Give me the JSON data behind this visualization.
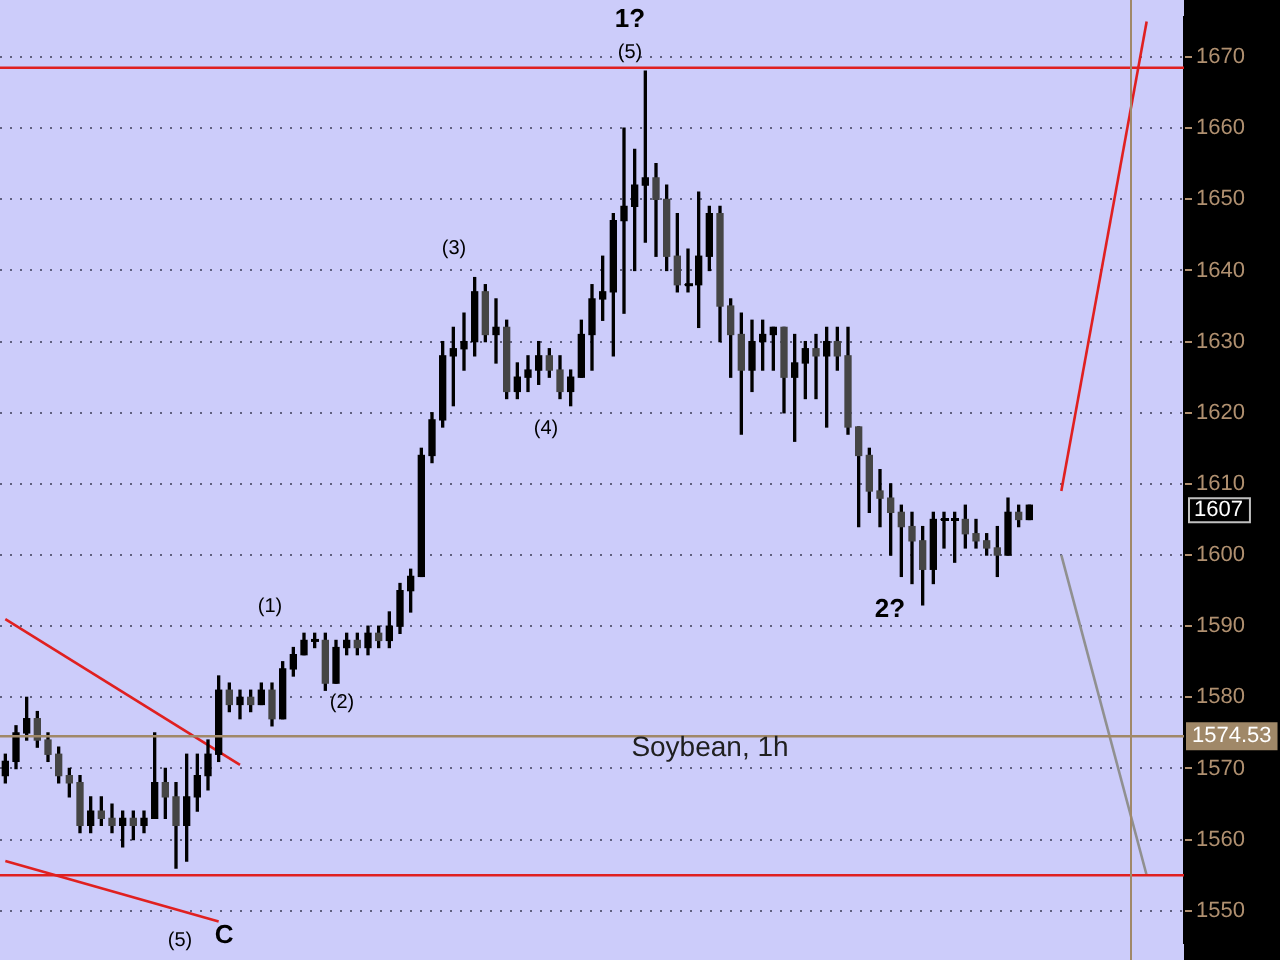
{
  "chart_data": {
    "type": "candlestick",
    "categories": [
      null,
      null,
      null,
      null,
      null,
      null,
      null,
      null,
      null,
      null,
      null,
      null,
      null,
      null,
      null,
      null,
      null,
      null,
      null,
      null,
      null,
      null,
      null,
      null,
      null,
      null,
      null,
      null,
      null,
      null,
      null,
      null,
      null,
      null,
      null,
      null,
      null,
      null,
      null,
      null,
      null,
      null,
      null,
      null,
      null,
      null,
      null,
      null,
      null,
      null,
      null,
      null,
      null,
      null,
      null,
      null,
      null,
      null,
      null,
      null,
      null,
      null,
      null,
      null,
      null,
      null,
      null,
      null,
      null,
      null,
      null,
      null,
      null,
      null,
      null,
      null,
      null,
      null,
      null,
      null,
      null,
      null,
      null,
      null,
      null,
      null,
      null,
      null,
      null,
      null,
      null,
      null,
      null,
      null,
      null,
      null,
      null,
      null,
      null,
      null,
      null,
      null,
      null,
      null,
      null,
      null,
      null,
      null,
      null,
      null,
      null
    ],
    "color": "#000000",
    "colors": [
      "#000000",
      "#000000",
      "#000000",
      "#454545",
      "#454545",
      "#454545",
      "#454545",
      "#454545",
      "#000000",
      "#454545",
      "#454545",
      "#000000",
      "#454545",
      "#000000",
      "#000000",
      "#454545",
      "#454545",
      "#000000",
      "#000000",
      "#000000",
      "#000000",
      "#454545",
      "#000000",
      "#454545",
      "#000000",
      "#454545",
      "#000000",
      "#000000",
      "#000000",
      "#000000",
      "#454545",
      "#000000",
      "#000000",
      "#454545",
      "#000000",
      "#454545",
      "#000000",
      "#000000",
      "#000000",
      "#000000",
      "#000000",
      "#000000",
      "#000000",
      "#000000",
      "#000000",
      "#454545",
      "#000000",
      "#454545",
      "#000000",
      "#000000",
      "#000000",
      "#454545",
      "#454545",
      "#000000",
      "#000000",
      "#000000",
      "#000000",
      "#000000",
      "#000000",
      "#000000",
      "#000000",
      "#454545",
      "#454545",
      "#454545",
      "#000000",
      "#000000",
      "#000000",
      "#454545",
      "#454545",
      "#454545",
      "#000000",
      "#000000",
      "#000000",
      "#454545",
      "#000000",
      "#000000",
      "#454545",
      "#000000",
      "#454545",
      "#454545",
      "#454545",
      "#454545",
      "#454545",
      "#454545",
      "#454545",
      "#454545",
      "#454545",
      "#000000",
      "#000000",
      "#000000",
      "#454545",
      "#454545",
      "#454545",
      "#454545",
      "#000000",
      "#454545",
      "#000000",
      null,
      null,
      null,
      null,
      null,
      null,
      null,
      null,
      null,
      null,
      null,
      null,
      null,
      null
    ],
    "ohlc": [
      [
        1569,
        1572,
        1568,
        1571
      ],
      [
        1571,
        1576,
        1570,
        1575
      ],
      [
        1575,
        1580,
        1574,
        1577
      ],
      [
        1577,
        1578,
        1573,
        1574
      ],
      [
        1574,
        1575,
        1571,
        1572
      ],
      [
        1572,
        1573,
        1568,
        1569
      ],
      [
        1569,
        1570,
        1566,
        1568
      ],
      [
        1568,
        1569,
        1561,
        1562
      ],
      [
        1562,
        1566,
        1561,
        1564
      ],
      [
        1564,
        1566,
        1562,
        1563
      ],
      [
        1563,
        1565,
        1561,
        1562
      ],
      [
        1562,
        1564,
        1559,
        1563
      ],
      [
        1563,
        1564,
        1560,
        1562
      ],
      [
        1562,
        1564,
        1561,
        1563
      ],
      [
        1563,
        1575,
        1563,
        1568
      ],
      [
        1568,
        1570,
        1563,
        1566
      ],
      [
        1566,
        1568,
        1556,
        1562
      ],
      [
        1562,
        1572,
        1557,
        1566
      ],
      [
        1566,
        1572,
        1564,
        1569
      ],
      [
        1569,
        1574,
        1567,
        1572
      ],
      [
        1572,
        1583,
        1571,
        1581
      ],
      [
        1581,
        1582,
        1578,
        1579
      ],
      [
        1579,
        1581,
        1577,
        1580
      ],
      [
        1580,
        1581,
        1578,
        1579
      ],
      [
        1579,
        1582,
        1579,
        1581
      ],
      [
        1581,
        1582,
        1576,
        1577
      ],
      [
        1577,
        1585,
        1577,
        1584
      ],
      [
        1584,
        1587,
        1583,
        1586
      ],
      [
        1586,
        1589,
        1586,
        1588
      ],
      [
        1588,
        1589,
        1587,
        1588
      ],
      [
        1588,
        1589,
        1581,
        1582
      ],
      [
        1582,
        1588,
        1582,
        1587
      ],
      [
        1587,
        1589,
        1586,
        1588
      ],
      [
        1588,
        1589,
        1586,
        1587
      ],
      [
        1587,
        1590,
        1586,
        1589
      ],
      [
        1589,
        1590,
        1587,
        1588
      ],
      [
        1588,
        1592,
        1587,
        1590
      ],
      [
        1590,
        1596,
        1589,
        1595
      ],
      [
        1595,
        1598,
        1592,
        1597
      ],
      [
        1597,
        1615,
        1597,
        1614
      ],
      [
        1614,
        1620,
        1613,
        1619
      ],
      [
        1619,
        1630,
        1618,
        1628
      ],
      [
        1628,
        1632,
        1621,
        1629
      ],
      [
        1629,
        1634,
        1626,
        1630
      ],
      [
        1630,
        1639,
        1628,
        1637
      ],
      [
        1637,
        1638,
        1630,
        1631
      ],
      [
        1631,
        1636,
        1627,
        1632
      ],
      [
        1632,
        1633,
        1622,
        1623
      ],
      [
        1623,
        1627,
        1622,
        1625
      ],
      [
        1625,
        1628,
        1623,
        1626
      ],
      [
        1626,
        1630,
        1624,
        1628
      ],
      [
        1628,
        1629,
        1625,
        1626
      ],
      [
        1626,
        1628,
        1622,
        1623
      ],
      [
        1623,
        1626,
        1621,
        1625
      ],
      [
        1625,
        1633,
        1625,
        1631
      ],
      [
        1631,
        1638,
        1626,
        1636
      ],
      [
        1636,
        1642,
        1633,
        1637
      ],
      [
        1637,
        1648,
        1628,
        1647
      ],
      [
        1647,
        1660,
        1634,
        1649
      ],
      [
        1649,
        1657,
        1640,
        1652
      ],
      [
        1652,
        1668,
        1644,
        1653
      ],
      [
        1653,
        1655,
        1642,
        1650
      ],
      [
        1650,
        1652,
        1640,
        1642
      ],
      [
        1642,
        1648,
        1637,
        1638
      ],
      [
        1638,
        1643,
        1637,
        1638
      ],
      [
        1638,
        1651,
        1632,
        1642
      ],
      [
        1642,
        1649,
        1640,
        1648
      ],
      [
        1648,
        1649,
        1630,
        1635
      ],
      [
        1635,
        1636,
        1625,
        1631
      ],
      [
        1631,
        1634,
        1617,
        1626
      ],
      [
        1626,
        1633,
        1623,
        1630
      ],
      [
        1630,
        1633,
        1626,
        1631
      ],
      [
        1631,
        1632,
        1626,
        1632
      ],
      [
        1632,
        1632,
        1620,
        1625
      ],
      [
        1625,
        1631,
        1616,
        1627
      ],
      [
        1627,
        1630,
        1622,
        1629
      ],
      [
        1629,
        1631,
        1622,
        1628
      ],
      [
        1628,
        1632,
        1618,
        1630
      ],
      [
        1630,
        1632,
        1626,
        1628
      ],
      [
        1628,
        1632,
        1617,
        1618
      ],
      [
        1618,
        1618,
        1604,
        1614
      ],
      [
        1614,
        1615,
        1606,
        1609
      ],
      [
        1609,
        1612,
        1604,
        1608
      ],
      [
        1608,
        1610,
        1600,
        1606
      ],
      [
        1606,
        1607,
        1597,
        1604
      ],
      [
        1604,
        1606,
        1596,
        1602
      ],
      [
        1602,
        1604,
        1593,
        1598
      ],
      [
        1598,
        1606,
        1596,
        1605
      ],
      [
        1605,
        1606,
        1601,
        1605
      ],
      [
        1605,
        1606,
        1599,
        1605
      ],
      [
        1605,
        1607,
        1601,
        1603
      ],
      [
        1603,
        1605,
        1601,
        1602
      ],
      [
        1602,
        1603,
        1600,
        1601
      ],
      [
        1601,
        1604,
        1597,
        1600
      ],
      [
        1600,
        1608,
        1600,
        1606
      ],
      [
        1606,
        1607,
        1604,
        1605
      ],
      [
        1605,
        1607,
        1605,
        1607
      ],
      null,
      null,
      null,
      null,
      null,
      null,
      null,
      null,
      null,
      null,
      null,
      null,
      null,
      null
    ],
    "series": [
      {
        "type": "line",
        "color": "#e02020",
        "values": [
          1591,
          null,
          null,
          null,
          null,
          null,
          null,
          null,
          null,
          null,
          null,
          null,
          null,
          null,
          null,
          null,
          null,
          null,
          null,
          null,
          null,
          null,
          1570.5,
          null,
          null,
          null,
          null,
          null,
          null,
          null,
          null,
          null,
          null,
          null,
          null,
          null,
          null,
          null,
          null,
          null,
          null,
          null,
          null,
          null,
          null,
          null,
          null,
          null,
          null,
          null,
          null,
          null,
          null,
          null,
          null,
          null,
          null,
          null,
          null,
          null,
          null,
          null,
          null,
          null,
          null,
          null,
          null,
          null,
          null,
          null,
          null,
          null,
          null,
          null,
          null,
          null,
          null,
          null,
          null,
          null,
          null,
          null,
          null,
          null,
          null,
          null,
          null,
          null,
          null,
          null,
          null,
          null,
          null,
          null,
          null,
          null,
          null,
          null,
          null,
          null,
          null,
          null,
          null,
          null,
          null,
          null,
          null,
          null,
          null,
          null,
          null
        ]
      },
      {
        "type": "line",
        "color": "#e02020",
        "values": [
          1557,
          null,
          null,
          null,
          null,
          null,
          null,
          null,
          null,
          null,
          null,
          null,
          null,
          null,
          null,
          null,
          null,
          null,
          null,
          null,
          1548.5,
          null,
          null,
          null,
          null,
          null,
          null,
          null,
          null,
          null,
          null,
          null,
          null,
          null,
          null,
          null,
          null,
          null,
          null,
          null,
          null,
          null,
          null,
          null,
          null,
          null,
          null,
          null,
          null,
          null,
          null,
          null,
          null,
          null,
          null,
          null,
          null,
          null,
          null,
          null,
          null,
          null,
          null,
          null,
          null,
          null,
          null,
          null,
          null,
          null,
          null,
          null,
          null,
          null,
          null,
          null,
          null,
          null,
          null,
          null,
          null,
          null,
          null,
          null,
          null,
          null,
          null,
          null,
          null,
          null,
          null,
          null,
          null,
          null,
          null,
          null,
          null,
          null,
          null,
          null,
          null,
          null,
          null,
          null,
          null,
          null,
          null,
          null,
          null,
          null,
          null
        ]
      },
      {
        "type": "line",
        "color": "#e02020",
        "values": [
          null,
          null,
          null,
          null,
          null,
          null,
          null,
          null,
          null,
          null,
          null,
          null,
          null,
          null,
          null,
          null,
          null,
          null,
          null,
          null,
          null,
          null,
          null,
          null,
          null,
          null,
          null,
          null,
          null,
          null,
          null,
          null,
          null,
          null,
          null,
          null,
          null,
          null,
          null,
          null,
          null,
          null,
          null,
          null,
          null,
          null,
          null,
          null,
          null,
          null,
          null,
          null,
          null,
          null,
          null,
          null,
          null,
          null,
          null,
          null,
          null,
          null,
          null,
          null,
          null,
          null,
          null,
          null,
          null,
          null,
          null,
          null,
          null,
          null,
          null,
          null,
          null,
          null,
          null,
          null,
          null,
          null,
          null,
          null,
          null,
          null,
          null,
          null,
          null,
          null,
          null,
          null,
          null,
          null,
          null,
          null,
          null,
          null,
          null,
          1609,
          null,
          null,
          null,
          null,
          null,
          null,
          null,
          1675,
          null,
          null,
          null
        ]
      },
      {
        "type": "line",
        "color": "#909090",
        "values": [
          null,
          null,
          null,
          null,
          null,
          null,
          null,
          null,
          null,
          null,
          null,
          null,
          null,
          null,
          null,
          null,
          null,
          null,
          null,
          null,
          null,
          null,
          null,
          null,
          null,
          null,
          null,
          null,
          null,
          null,
          null,
          null,
          null,
          null,
          null,
          null,
          null,
          null,
          null,
          null,
          null,
          null,
          null,
          null,
          null,
          null,
          null,
          null,
          null,
          null,
          null,
          null,
          null,
          null,
          null,
          null,
          null,
          null,
          null,
          null,
          null,
          null,
          null,
          null,
          null,
          null,
          null,
          null,
          null,
          null,
          null,
          null,
          null,
          null,
          null,
          null,
          null,
          null,
          null,
          null,
          null,
          null,
          null,
          null,
          null,
          null,
          null,
          null,
          null,
          null,
          null,
          null,
          null,
          null,
          null,
          null,
          null,
          null,
          null,
          1600,
          null,
          null,
          null,
          null,
          null,
          null,
          null,
          1555,
          null,
          null,
          null
        ]
      }
    ],
    "ylim": [
      1545.5,
      1675.6
    ],
    "yticks": [
      1550,
      1560,
      1570,
      1580,
      1590,
      1600,
      1610,
      1620,
      1630,
      1640,
      1650,
      1660,
      1670
    ],
    "tick_labels": "y",
    "grid": "y",
    "ref_lines": [
      {
        "axis": "y",
        "value": 1668.5,
        "color": "#e02020"
      },
      {
        "axis": "y",
        "value": 1555,
        "color": "#e02020"
      },
      {
        "axis": "y",
        "value": 1574.53,
        "label": "1574.53",
        "color": "#a08868"
      }
    ],
    "annotations": [
      "Soybean, 1h",
      "1607",
      "(5)",
      "C",
      "(1)",
      "(2)",
      "(3)",
      "(4)",
      "(5)",
      "1?",
      "2?"
    ]
  }
}
